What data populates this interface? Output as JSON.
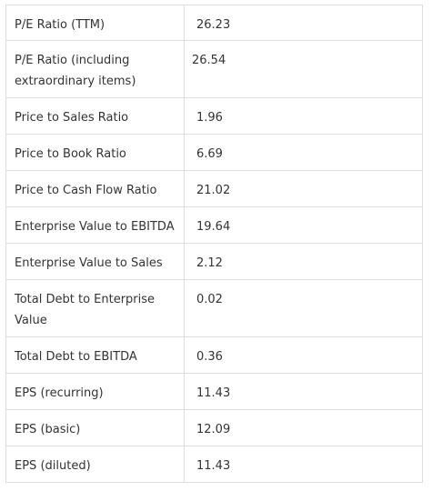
{
  "ratios": [
    {
      "label": "P/E Ratio (TTM)",
      "value": "26.23"
    },
    {
      "label": "P/E Ratio (including extraordinary items)",
      "value": "26.54"
    },
    {
      "label": "Price to Sales Ratio",
      "value": "1.96"
    },
    {
      "label": "Price to Book Ratio",
      "value": "6.69"
    },
    {
      "label": "Price to Cash Flow Ratio",
      "value": "21.02"
    },
    {
      "label": "Enterprise Value to EBITDA",
      "value": "19.64"
    },
    {
      "label": "Enterprise Value to Sales",
      "value": "2.12"
    },
    {
      "label": "Total Debt to Enterprise Value",
      "value": "0.02"
    },
    {
      "label": "Total Debt to EBITDA",
      "value": "0.36"
    },
    {
      "label": "EPS (recurring)",
      "value": "11.43"
    },
    {
      "label": "EPS (basic)",
      "value": "12.09"
    },
    {
      "label": "EPS (diluted)",
      "value": "11.43"
    }
  ]
}
